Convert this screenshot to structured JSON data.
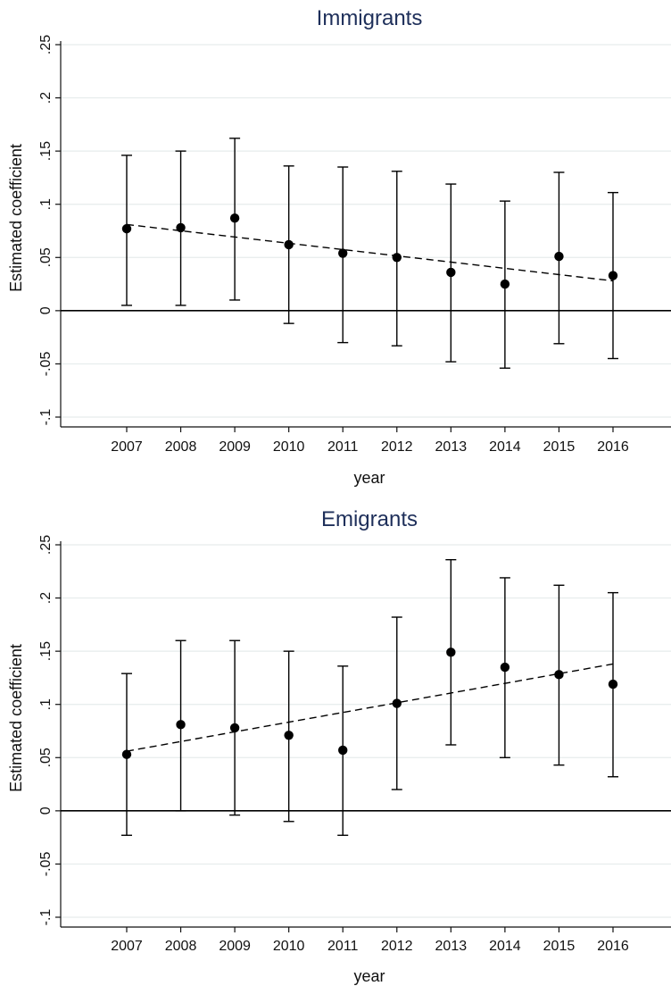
{
  "colors": {
    "title": "#1e2f5a",
    "grid": "#e6ecec",
    "axis": "#111111",
    "marker": "#000000",
    "zero_line": "#000000",
    "trend": "#000000",
    "background": "#ffffff"
  },
  "chart_data": [
    {
      "type": "scatter",
      "title": "Immigrants",
      "xlabel": "year",
      "ylabel": "Estimated coefficient",
      "x": [
        2007,
        2008,
        2009,
        2010,
        2011,
        2012,
        2013,
        2014,
        2015,
        2016
      ],
      "x_tick_labels": [
        "2007",
        "2008",
        "2009",
        "2010",
        "2011",
        "2012",
        "2013",
        "2014",
        "2015",
        "2016"
      ],
      "xlim": [
        2006,
        2017
      ],
      "ylim": [
        -0.1,
        0.25
      ],
      "y_ticks": [
        -0.1,
        -0.05,
        0,
        0.05,
        0.1,
        0.15,
        0.2,
        0.25
      ],
      "y_tick_labels": [
        "-.1",
        "-.05",
        "0",
        ".05",
        ".1",
        ".15",
        ".2",
        ".25"
      ],
      "grid": true,
      "zero_line": true,
      "series": [
        {
          "estimate": [
            0.077,
            0.078,
            0.087,
            0.062,
            0.054,
            0.05,
            0.036,
            0.025,
            0.051,
            0.033
          ],
          "ci_lower": [
            0.005,
            0.005,
            0.01,
            -0.012,
            -0.03,
            -0.033,
            -0.048,
            -0.054,
            -0.031,
            -0.045
          ],
          "ci_upper": [
            0.146,
            0.15,
            0.162,
            0.136,
            0.135,
            0.131,
            0.119,
            0.103,
            0.13,
            0.111
          ]
        }
      ],
      "trend_line": {
        "style": "dashed",
        "x": [
          2007,
          2016
        ],
        "y": [
          0.081,
          0.028
        ]
      }
    },
    {
      "type": "scatter",
      "title": "Emigrants",
      "xlabel": "year",
      "ylabel": "Estimated coefficient",
      "x": [
        2007,
        2008,
        2009,
        2010,
        2011,
        2012,
        2013,
        2014,
        2015,
        2016
      ],
      "x_tick_labels": [
        "2007",
        "2008",
        "2009",
        "2010",
        "2011",
        "2012",
        "2013",
        "2014",
        "2015",
        "2016"
      ],
      "xlim": [
        2006,
        2017
      ],
      "ylim": [
        -0.1,
        0.25
      ],
      "y_ticks": [
        -0.1,
        -0.05,
        0,
        0.05,
        0.1,
        0.15,
        0.2,
        0.25
      ],
      "y_tick_labels": [
        "-.1",
        "-.05",
        "0",
        ".05",
        ".1",
        ".15",
        ".2",
        ".25"
      ],
      "grid": true,
      "zero_line": true,
      "series": [
        {
          "estimate": [
            0.053,
            0.081,
            0.078,
            0.071,
            0.057,
            0.101,
            0.149,
            0.135,
            0.128,
            0.119
          ],
          "ci_lower": [
            -0.023,
            0.0,
            -0.004,
            -0.01,
            -0.023,
            0.02,
            0.062,
            0.05,
            0.043,
            0.032
          ],
          "ci_upper": [
            0.129,
            0.16,
            0.16,
            0.15,
            0.136,
            0.182,
            0.236,
            0.219,
            0.212,
            0.205
          ]
        }
      ],
      "trend_line": {
        "style": "dashed",
        "x": [
          2007,
          2016
        ],
        "y": [
          0.056,
          0.138
        ]
      }
    }
  ]
}
